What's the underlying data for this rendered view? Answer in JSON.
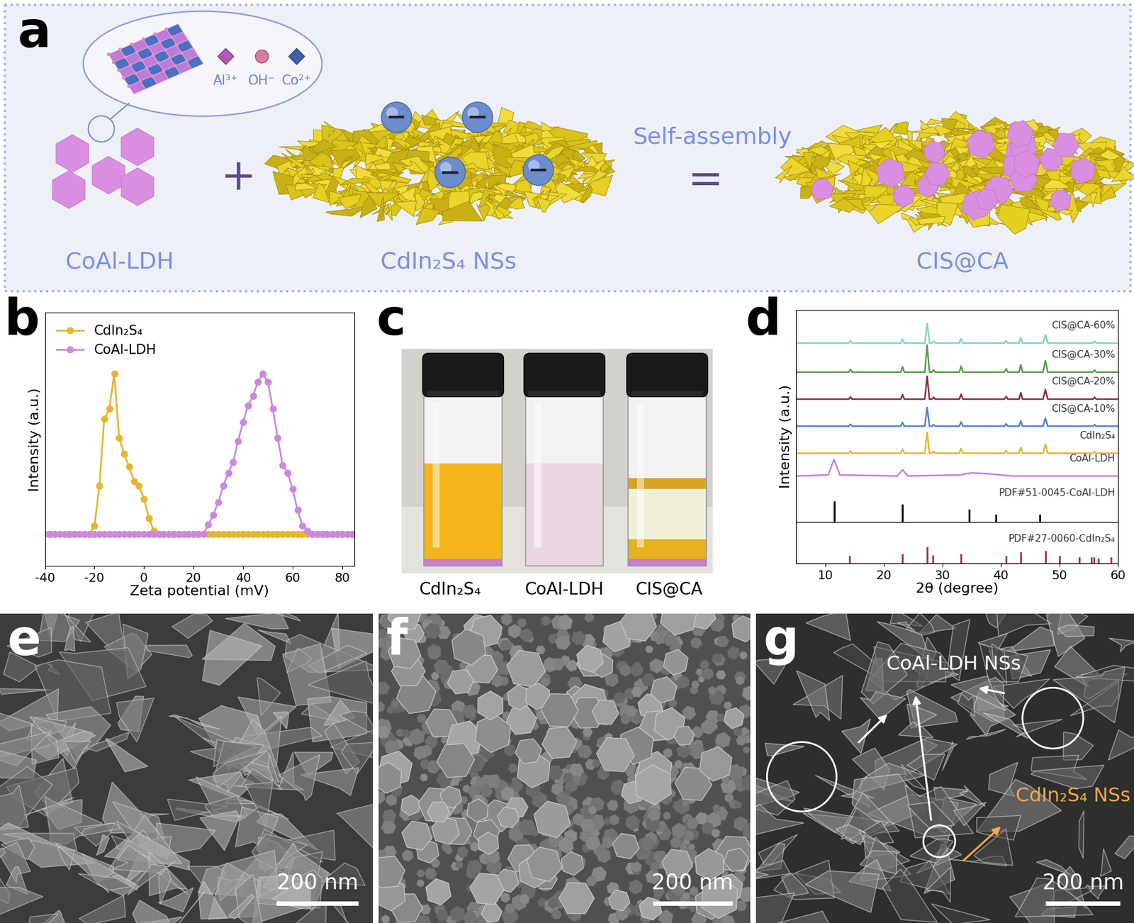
{
  "chart_data": [
    {
      "type": "line",
      "panel": "b",
      "xlabel": "Zeta potential (mV)",
      "ylabel": "Intensity (a.u.)",
      "xlim": [
        -40,
        85
      ],
      "xticks": [
        -40,
        -20,
        0,
        20,
        40,
        60,
        80
      ],
      "ylim": [
        -0.2,
        1.38
      ],
      "tick_labels": "x",
      "legend": "upper left",
      "x": [
        -40,
        -38,
        -36,
        -34,
        -32,
        -30,
        -28,
        -26,
        -24,
        -22,
        -20,
        -18,
        -16,
        -14,
        -12,
        -10,
        -8,
        -6,
        -4,
        -2,
        0,
        2,
        4,
        6,
        8,
        10,
        12,
        14,
        16,
        18,
        20,
        22,
        24,
        26,
        28,
        30,
        32,
        34,
        36,
        38,
        40,
        42,
        44,
        46,
        48,
        50,
        52,
        54,
        56,
        58,
        60,
        62,
        64,
        66,
        68,
        70,
        72,
        74,
        76,
        78,
        80,
        82,
        84
      ],
      "series": [
        {
          "name": "CdIn₂S₄",
          "color": "#e6b530",
          "marker": "o",
          "values": [
            0,
            0,
            0,
            0,
            0,
            0,
            0,
            0,
            0,
            0,
            0.05,
            0.3,
            0.72,
            0.78,
            1.0,
            0.6,
            0.5,
            0.42,
            0.33,
            0.3,
            0.22,
            0.1,
            0.02,
            0,
            0,
            0,
            0,
            0,
            0,
            0,
            0,
            0,
            0,
            0,
            0,
            0,
            0,
            0,
            0,
            0,
            0,
            0,
            0,
            0,
            0,
            0,
            0,
            0,
            0,
            0,
            0,
            0,
            0,
            0,
            0,
            0,
            0,
            0,
            0,
            0,
            0,
            0,
            0
          ]
        },
        {
          "name": "CoAl-LDH",
          "color": "#cc88dd",
          "marker": "o",
          "values": [
            0,
            0,
            0,
            0,
            0,
            0,
            0,
            0,
            0,
            0,
            0,
            0,
            0,
            0,
            0,
            0,
            0,
            0,
            0,
            0,
            0,
            0,
            0,
            0,
            0,
            0,
            0,
            0,
            0,
            0,
            0,
            0,
            0,
            0.06,
            0.12,
            0.2,
            0.3,
            0.38,
            0.45,
            0.58,
            0.7,
            0.8,
            0.86,
            0.95,
            1.0,
            0.95,
            0.78,
            0.6,
            0.43,
            0.38,
            0.28,
            0.15,
            0.05,
            0.02,
            0,
            0,
            0,
            0,
            0,
            0,
            0,
            0,
            0
          ]
        }
      ]
    },
    {
      "type": "line",
      "panel": "d",
      "xlabel": "2θ (degree)",
      "ylabel": "Intensity (a.u.)",
      "xlim": [
        5,
        60
      ],
      "xticks": [
        10,
        20,
        30,
        40,
        50,
        60
      ],
      "ylim": [
        0,
        12.2
      ],
      "tick_labels": "x",
      "series": [
        {
          "name": "CIS@CA-60%",
          "color": "#7fd8b5",
          "type": "line",
          "x": [
            5,
            14.0,
            14.3,
            14.6,
            22.9,
            23.2,
            23.5,
            27.0,
            27.4,
            27.8,
            28.2,
            28.5,
            28.8,
            32.9,
            33.2,
            33.5,
            40.6,
            40.9,
            41.2,
            43.1,
            43.4,
            43.7,
            47.2,
            47.6,
            48.0,
            55.7,
            56.0,
            56.3,
            60
          ],
          "values": [
            10.6,
            10.6,
            10.7,
            10.6,
            10.6,
            10.79,
            10.6,
            10.6,
            11.55,
            10.6,
            10.6,
            10.68,
            10.6,
            10.6,
            10.81,
            10.6,
            10.6,
            10.71,
            10.6,
            10.6,
            10.87,
            10.6,
            10.6,
            11.0,
            10.6,
            10.6,
            10.68,
            10.6,
            10.6
          ]
        },
        {
          "name": "CIS@CA-30%",
          "color": "#5a9a50",
          "type": "line",
          "x": [
            5,
            14.0,
            14.3,
            14.6,
            22.9,
            23.2,
            23.5,
            27.0,
            27.4,
            27.8,
            28.2,
            28.5,
            28.8,
            32.9,
            33.2,
            33.5,
            40.6,
            40.9,
            41.2,
            43.1,
            43.4,
            43.7,
            47.2,
            47.6,
            48.0,
            55.7,
            56.0,
            56.3,
            60
          ],
          "values": [
            9.2,
            9.2,
            9.33,
            9.2,
            9.2,
            9.46,
            9.2,
            9.2,
            10.5,
            9.2,
            9.2,
            9.3,
            9.2,
            9.2,
            9.49,
            9.2,
            9.2,
            9.36,
            9.2,
            9.2,
            9.56,
            9.2,
            9.2,
            9.75,
            9.2,
            9.2,
            9.3,
            9.2,
            9.2
          ]
        },
        {
          "name": "CIS@CA-20%",
          "color": "#8b2a50",
          "type": "line",
          "x": [
            5,
            14.0,
            14.3,
            14.6,
            22.9,
            23.2,
            23.5,
            27.0,
            27.4,
            27.8,
            28.2,
            28.5,
            28.8,
            32.9,
            33.2,
            33.5,
            40.6,
            40.9,
            41.2,
            43.1,
            43.4,
            43.7,
            47.2,
            47.6,
            48.0,
            55.7,
            56.0,
            56.3,
            60
          ],
          "values": [
            7.9,
            7.9,
            8.01,
            7.9,
            7.9,
            8.12,
            7.9,
            7.9,
            9.0,
            7.9,
            7.9,
            7.99,
            7.9,
            7.9,
            8.14,
            7.9,
            7.9,
            8.03,
            7.9,
            7.9,
            8.21,
            7.9,
            7.9,
            8.36,
            7.9,
            7.9,
            7.99,
            7.9,
            7.9
          ]
        },
        {
          "name": "CIS@CA-10%",
          "color": "#4f7fd6",
          "type": "line",
          "x": [
            5,
            14.0,
            14.3,
            14.6,
            22.9,
            23.2,
            23.5,
            27.0,
            27.4,
            27.8,
            28.2,
            28.5,
            28.8,
            32.9,
            33.2,
            33.5,
            40.6,
            40.9,
            41.2,
            43.1,
            43.4,
            43.7,
            47.2,
            47.6,
            48.0,
            55.7,
            56.0,
            56.3,
            60
          ],
          "values": [
            6.6,
            6.6,
            6.69,
            6.6,
            6.6,
            6.78,
            6.6,
            6.6,
            7.5,
            6.6,
            6.6,
            6.67,
            6.6,
            6.6,
            6.8,
            6.6,
            6.6,
            6.71,
            6.6,
            6.6,
            6.85,
            6.6,
            6.6,
            6.98,
            6.6,
            6.6,
            6.67,
            6.6,
            6.6
          ]
        },
        {
          "name": "CdIn₂S₄",
          "color": "#e6b530",
          "type": "line",
          "x": [
            5,
            14.0,
            14.3,
            14.6,
            22.9,
            23.2,
            23.5,
            27.0,
            27.4,
            27.8,
            28.2,
            28.5,
            28.8,
            32.9,
            33.2,
            33.5,
            40.6,
            40.9,
            41.2,
            43.1,
            43.4,
            43.7,
            47.2,
            47.6,
            48.0,
            55.7,
            56.0,
            56.3,
            60
          ],
          "values": [
            5.3,
            5.3,
            5.4,
            5.3,
            5.3,
            5.5,
            5.3,
            5.3,
            6.3,
            5.3,
            5.3,
            5.38,
            5.3,
            5.3,
            5.52,
            5.3,
            5.3,
            5.42,
            5.3,
            5.3,
            5.58,
            5.3,
            5.3,
            5.72,
            5.3,
            5.3,
            5.38,
            5.3,
            5.3
          ]
        },
        {
          "name": "CoAl-LDH",
          "color": "#c77fd9",
          "type": "line",
          "x": [
            5,
            10.5,
            11.5,
            12.5,
            22.3,
            23.2,
            24.1,
            33,
            35,
            38,
            42,
            60
          ],
          "values": [
            4.2,
            4.25,
            5.0,
            4.25,
            4.2,
            4.5,
            4.2,
            4.25,
            4.35,
            4.3,
            4.2,
            4.2
          ]
        },
        {
          "name": "PDF#51-0045-CoAl-LDH",
          "color": "#000000",
          "type": "stick",
          "base": 2.0,
          "x": [
            11.5,
            23.2,
            34.6,
            39.1,
            46.6
          ],
          "values": [
            3.0,
            2.85,
            2.6,
            2.35,
            2.35
          ]
        },
        {
          "name": "PDF#27-0060-CdIn₂S₄",
          "color": "#a0304a",
          "type": "stick",
          "base": 0,
          "x": [
            14.2,
            23.2,
            27.4,
            28.4,
            33.2,
            40.9,
            43.4,
            47.6,
            50.0,
            53.4,
            55.4,
            55.9,
            56.6,
            58.8
          ],
          "values": [
            0.35,
            0.45,
            0.8,
            0.4,
            0.45,
            0.35,
            0.55,
            0.6,
            0.35,
            0.3,
            0.3,
            0.3,
            0.25,
            0.3
          ]
        }
      ]
    }
  ],
  "figure": {
    "a": {
      "panel": "a",
      "inset_ions": [
        "Al³⁺",
        "OH⁻",
        "Co²⁺"
      ],
      "components": [
        "CoAl-LDH",
        "CdIn₂S₄ NSs",
        "CIS@CA"
      ],
      "operators": [
        "+",
        "="
      ],
      "process": "Self-assembly"
    },
    "c": {
      "panel": "c",
      "vials": [
        "CdIn₂S₄",
        "CoAl-LDH",
        "CIS@CA"
      ]
    },
    "e": {
      "panel": "e",
      "scale_bar": "200 nm"
    },
    "f": {
      "panel": "f",
      "scale_bar": "200 nm"
    },
    "g": {
      "panel": "g",
      "scale_bar": "200 nm",
      "labels": [
        "CoAl-LDH NSs",
        "CdIn₂S₄ NSs"
      ]
    }
  }
}
